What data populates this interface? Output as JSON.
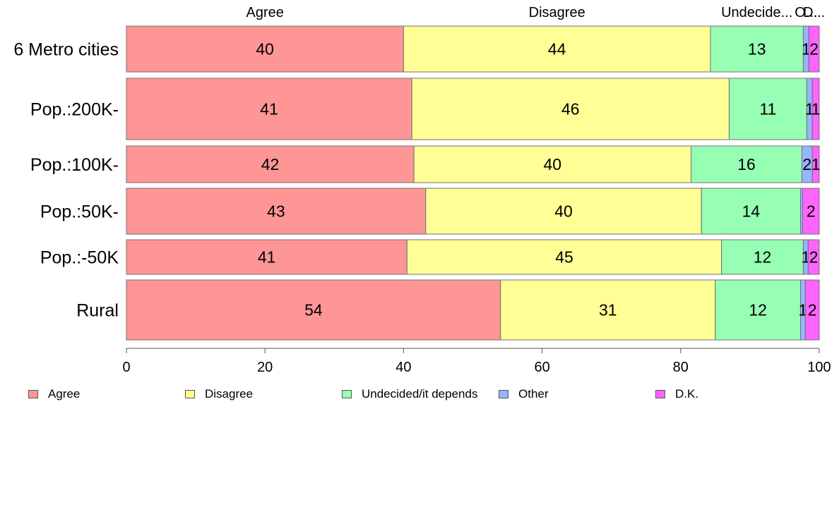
{
  "chart_data": {
    "type": "bar",
    "orientation": "horizontal",
    "stacked": true,
    "categories": [
      "6 Metro cities",
      "Pop.:200K-",
      "Pop.:100K-",
      "Pop.:50K-",
      "Pop.:-50K",
      "Rural"
    ],
    "series": [
      {
        "name": "Agree",
        "top_label": "Agree",
        "color": "#ff9696",
        "values": [
          40,
          41.2,
          41.5,
          43.2,
          40.5,
          54
        ],
        "labels": [
          "40",
          "41",
          "42",
          "43",
          "41",
          "54"
        ]
      },
      {
        "name": "Disagree",
        "top_label": "Disagree",
        "color": "#ffff96",
        "values": [
          44.3,
          45.8,
          40,
          39.8,
          45.4,
          31
        ],
        "labels": [
          "44",
          "46",
          "40",
          "40",
          "45",
          "31"
        ]
      },
      {
        "name": "Undecided/it depends",
        "top_label": "Undecide...",
        "color": "#96ffb4",
        "values": [
          13.4,
          11.2,
          16,
          14.3,
          11.8,
          12.3
        ],
        "labels": [
          "13",
          "11",
          "16",
          "14",
          "12",
          "12"
        ]
      },
      {
        "name": "Other",
        "top_label": "O...",
        "color": "#96b4ff",
        "values": [
          0.8,
          0.8,
          1.5,
          0.3,
          0.7,
          0.7
        ],
        "labels": [
          "1",
          "1",
          "2",
          "",
          "1",
          "1"
        ]
      },
      {
        "name": "D.K.",
        "top_label": "D...",
        "color": "#ff64ff",
        "values": [
          1.5,
          1,
          1,
          2.4,
          1.6,
          2
        ],
        "labels": [
          "2",
          "1",
          "1",
          "2",
          "2",
          "2"
        ]
      }
    ],
    "xlim": [
      0,
      100
    ],
    "xticks": [
      0,
      20,
      40,
      60,
      80,
      100
    ],
    "grid": false,
    "legend_position": "bottom"
  }
}
